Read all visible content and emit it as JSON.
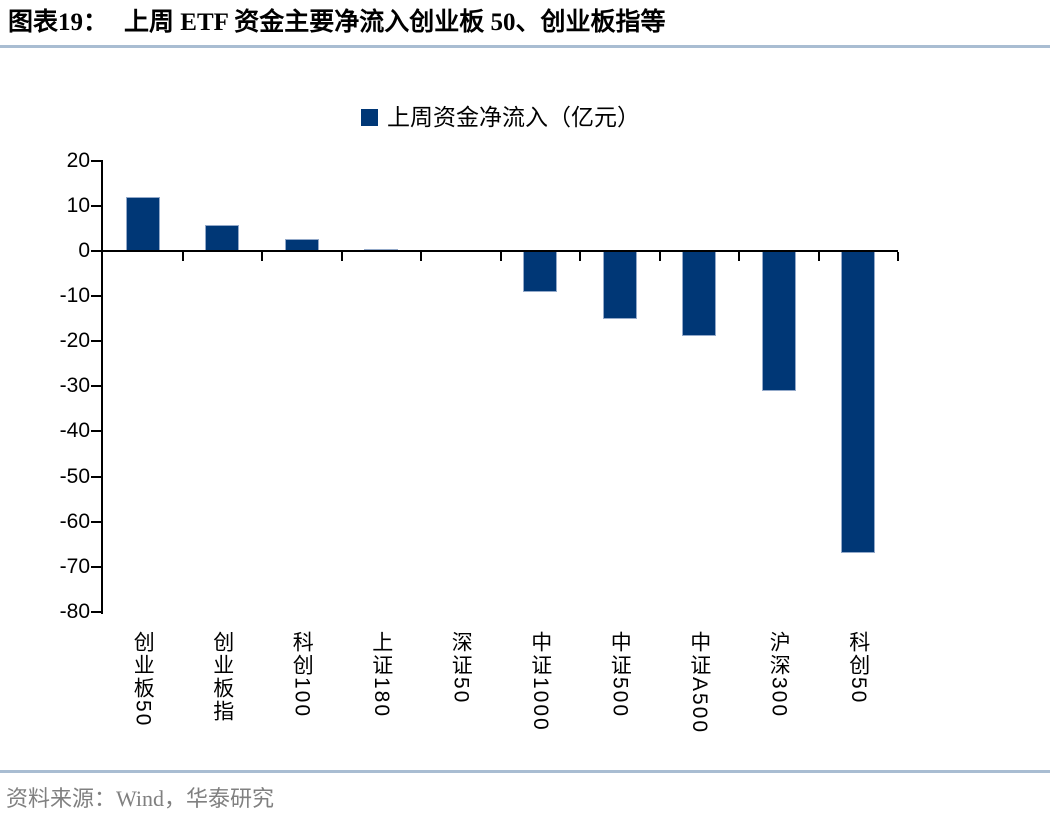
{
  "header": {
    "figure_label": "图表19：",
    "figure_title": "上周 ETF 资金主要净流入创业板 50、创业板指等"
  },
  "legend": {
    "label": "上周资金净流入（亿元）"
  },
  "chart_data": {
    "type": "bar",
    "title": "图表19： 上周 ETF 资金主要净流入创业板 50、创业板指等",
    "legend_label": "上周资金净流入（亿元）",
    "legend_position": "top-center",
    "unit": "亿元",
    "categories": [
      "创业板50",
      "创业板指",
      "科创100",
      "上证180",
      "深证50",
      "中证1000",
      "中证500",
      "中证A500",
      "沪深300",
      "科创50"
    ],
    "values": [
      11.9,
      5.8,
      2.7,
      0.5,
      0.0,
      -9.2,
      -15.0,
      -18.9,
      -31.0,
      -66.9
    ],
    "ylim": [
      -80,
      20
    ],
    "yticks": [
      20,
      10,
      0,
      -10,
      -20,
      -30,
      -40,
      -50,
      -60,
      -70,
      -80
    ],
    "grid": false,
    "bar_color": "#003776",
    "bar_border_color": "#93a9c9",
    "axis_color": "#000000"
  },
  "footer": {
    "source": "资料来源：Wind，华泰研究"
  },
  "colors": {
    "bar": "#003776",
    "rule": "#a9bdd2",
    "footer_text": "#808080",
    "axis": "#000000"
  }
}
